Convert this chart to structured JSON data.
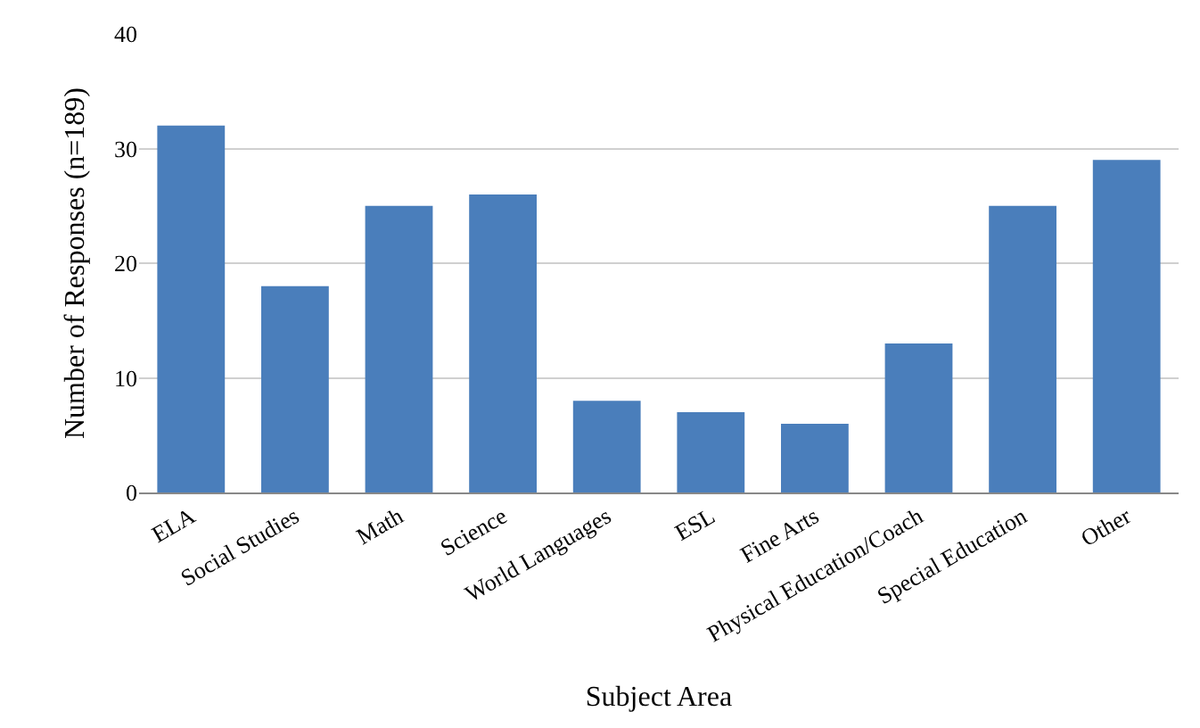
{
  "chart_data": {
    "type": "bar",
    "xlabel": "Subject Area",
    "ylabel": "Number of Responses (n=189)",
    "categories": [
      "ELA",
      "Social Studies",
      "Math",
      "Science",
      "World Languages",
      "ESL",
      "Fine Arts",
      "Physical Education/Coach",
      "Special Education",
      "Other"
    ],
    "values": [
      32,
      18,
      25,
      26,
      8,
      7,
      6,
      13,
      25,
      29
    ],
    "color": "#4a7ebb",
    "ylim": [
      0,
      40
    ],
    "yticks": [
      0,
      10,
      20,
      30,
      40
    ],
    "grid": "y"
  }
}
